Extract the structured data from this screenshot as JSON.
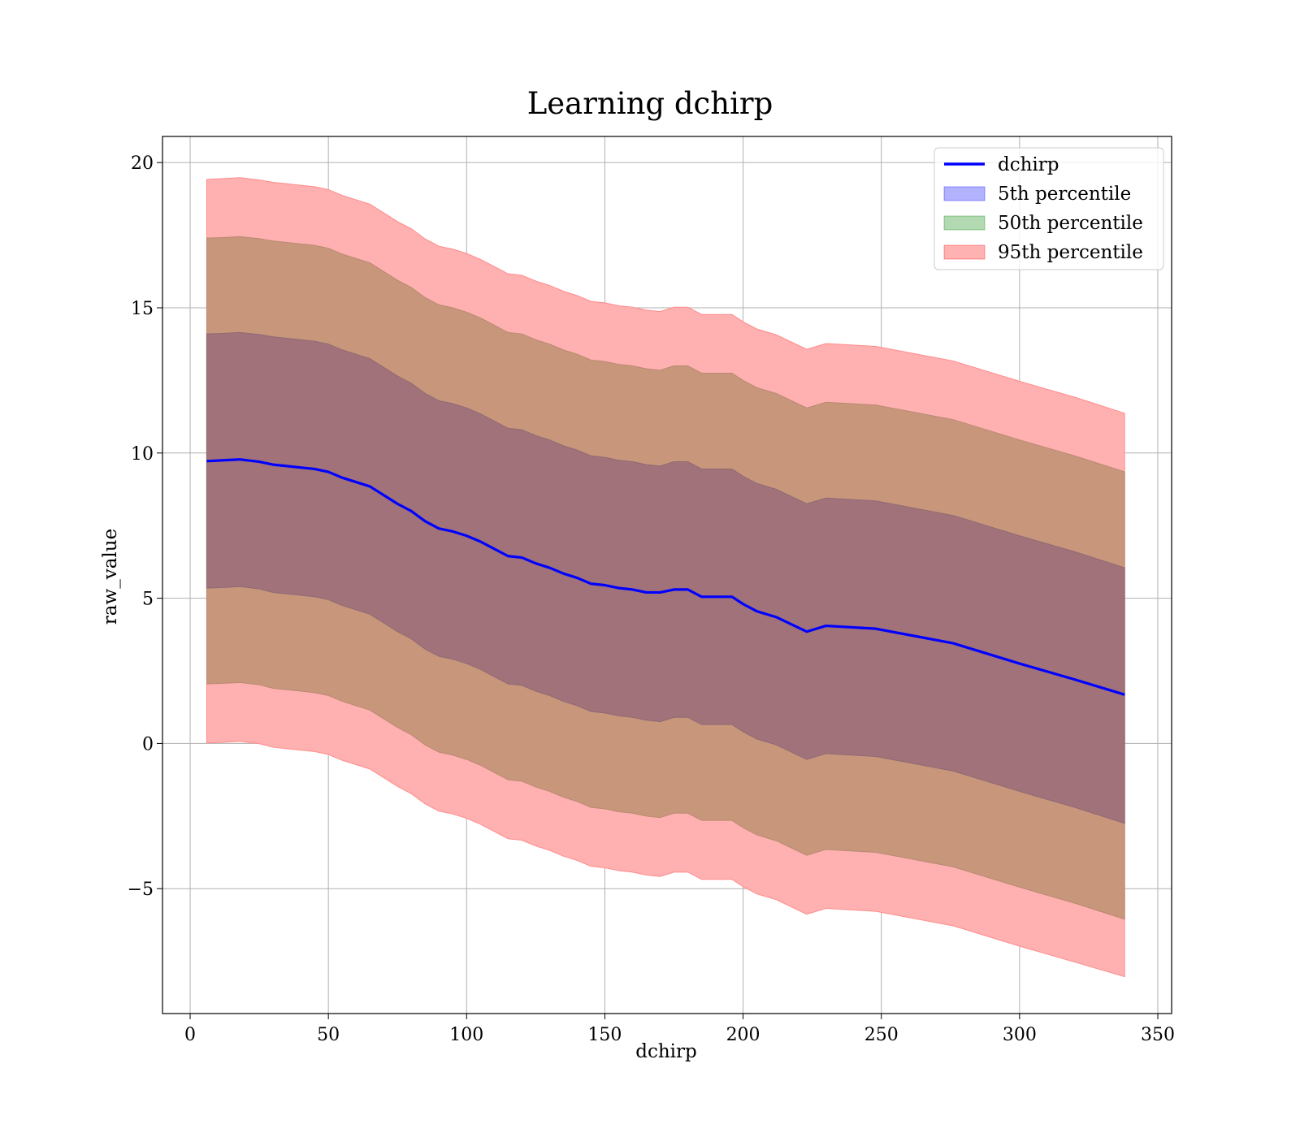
{
  "chart_data": {
    "type": "area",
    "title": "Learning dchirp",
    "xlabel": "dchirp",
    "ylabel": "raw_value",
    "xlim": [
      -10,
      355
    ],
    "ylim": [
      -9.3,
      20.9
    ],
    "xticks": [
      0,
      50,
      100,
      150,
      200,
      250,
      300,
      350
    ],
    "yticks": [
      -5,
      0,
      5,
      10,
      15,
      20
    ],
    "ytick_labels": [
      "−5",
      "0",
      "5",
      "10",
      "15",
      "20"
    ],
    "grid": true,
    "legend_position": "top-right",
    "colors": {
      "line": "#0000ff",
      "band_5th": "#0000ff",
      "band_50th": "#008000",
      "band_95th": "#ff0000",
      "composite_inner": "#a1727a",
      "composite_middle": "#c8967b",
      "composite_outer": "#ffb0b0"
    },
    "x": [
      6,
      12,
      18,
      25,
      30,
      35,
      40,
      45,
      50,
      55,
      60,
      65,
      70,
      75,
      80,
      85,
      90,
      95,
      100,
      105,
      110,
      115,
      120,
      125,
      130,
      135,
      140,
      145,
      150,
      155,
      160,
      165,
      170,
      175,
      180,
      185,
      190,
      196,
      200,
      205,
      212,
      223,
      230,
      248,
      276,
      300,
      320,
      338
    ],
    "series": [
      {
        "name": "dchirp",
        "values": [
          9.72,
          9.75,
          9.78,
          9.7,
          9.6,
          9.55,
          9.5,
          9.45,
          9.35,
          9.15,
          9.0,
          8.85,
          8.55,
          8.25,
          8.0,
          7.65,
          7.4,
          7.3,
          7.15,
          6.95,
          6.7,
          6.45,
          6.4,
          6.2,
          6.05,
          5.85,
          5.7,
          5.5,
          5.45,
          5.35,
          5.3,
          5.2,
          5.2,
          5.3,
          5.3,
          5.05,
          5.05,
          5.05,
          4.8,
          4.55,
          4.35,
          3.85,
          4.05,
          3.95,
          3.45,
          2.75,
          2.2,
          1.68
        ]
      },
      {
        "name": "5th percentile",
        "upper": [
          14.1,
          14.12,
          14.15,
          14.08,
          14.0,
          13.95,
          13.9,
          13.85,
          13.75,
          13.55,
          13.4,
          13.25,
          12.95,
          12.65,
          12.4,
          12.05,
          11.8,
          11.7,
          11.55,
          11.35,
          11.1,
          10.85,
          10.8,
          10.6,
          10.45,
          10.25,
          10.1,
          9.9,
          9.85,
          9.75,
          9.7,
          9.6,
          9.55,
          9.7,
          9.7,
          9.45,
          9.45,
          9.45,
          9.2,
          8.95,
          8.75,
          8.25,
          8.45,
          8.35,
          7.85,
          7.15,
          6.6,
          6.05
        ],
        "lower": [
          5.35,
          5.37,
          5.4,
          5.32,
          5.2,
          5.15,
          5.1,
          5.05,
          4.95,
          4.75,
          4.6,
          4.45,
          4.15,
          3.85,
          3.6,
          3.25,
          3.0,
          2.9,
          2.75,
          2.55,
          2.3,
          2.05,
          2.0,
          1.8,
          1.65,
          1.45,
          1.3,
          1.1,
          1.05,
          0.95,
          0.9,
          0.8,
          0.75,
          0.9,
          0.9,
          0.65,
          0.65,
          0.65,
          0.4,
          0.15,
          -0.05,
          -0.55,
          -0.35,
          -0.45,
          -0.95,
          -1.65,
          -2.2,
          -2.75
        ]
      },
      {
        "name": "50th percentile",
        "upper": [
          17.4,
          17.42,
          17.45,
          17.38,
          17.3,
          17.25,
          17.2,
          17.15,
          17.05,
          16.85,
          16.7,
          16.55,
          16.25,
          15.95,
          15.7,
          15.35,
          15.1,
          15.0,
          14.85,
          14.65,
          14.4,
          14.15,
          14.1,
          13.9,
          13.75,
          13.55,
          13.4,
          13.2,
          13.15,
          13.05,
          13.0,
          12.9,
          12.85,
          13.0,
          13.0,
          12.75,
          12.75,
          12.75,
          12.5,
          12.25,
          12.05,
          11.55,
          11.75,
          11.65,
          11.15,
          10.45,
          9.9,
          9.35
        ],
        "lower": [
          2.05,
          2.07,
          2.1,
          2.02,
          1.9,
          1.85,
          1.8,
          1.75,
          1.65,
          1.45,
          1.3,
          1.15,
          0.85,
          0.55,
          0.3,
          -0.05,
          -0.3,
          -0.4,
          -0.55,
          -0.75,
          -1.0,
          -1.25,
          -1.3,
          -1.5,
          -1.65,
          -1.85,
          -2.0,
          -2.2,
          -2.25,
          -2.35,
          -2.4,
          -2.5,
          -2.55,
          -2.4,
          -2.4,
          -2.65,
          -2.65,
          -2.65,
          -2.9,
          -3.15,
          -3.35,
          -3.85,
          -3.65,
          -3.75,
          -4.25,
          -4.95,
          -5.5,
          -6.05
        ]
      },
      {
        "name": "95th percentile",
        "upper": [
          19.42,
          19.45,
          19.48,
          19.4,
          19.32,
          19.27,
          19.22,
          19.17,
          19.07,
          18.87,
          18.72,
          18.57,
          18.27,
          17.97,
          17.72,
          17.37,
          17.12,
          17.02,
          16.87,
          16.67,
          16.42,
          16.17,
          16.12,
          15.92,
          15.77,
          15.57,
          15.42,
          15.22,
          15.17,
          15.07,
          15.02,
          14.92,
          14.87,
          15.02,
          15.02,
          14.77,
          14.77,
          14.77,
          14.52,
          14.27,
          14.07,
          13.57,
          13.77,
          13.67,
          13.17,
          12.47,
          11.92,
          11.37
        ],
        "lower": [
          0.02,
          0.04,
          0.07,
          -0.01,
          -0.13,
          -0.18,
          -0.23,
          -0.28,
          -0.38,
          -0.58,
          -0.73,
          -0.88,
          -1.18,
          -1.48,
          -1.73,
          -2.08,
          -2.33,
          -2.43,
          -2.58,
          -2.78,
          -3.03,
          -3.28,
          -3.33,
          -3.53,
          -3.68,
          -3.88,
          -4.03,
          -4.23,
          -4.28,
          -4.38,
          -4.43,
          -4.53,
          -4.58,
          -4.43,
          -4.43,
          -4.68,
          -4.68,
          -4.68,
          -4.93,
          -5.18,
          -5.38,
          -5.88,
          -5.68,
          -5.78,
          -6.28,
          -6.98,
          -7.53,
          -8.03
        ]
      }
    ]
  }
}
